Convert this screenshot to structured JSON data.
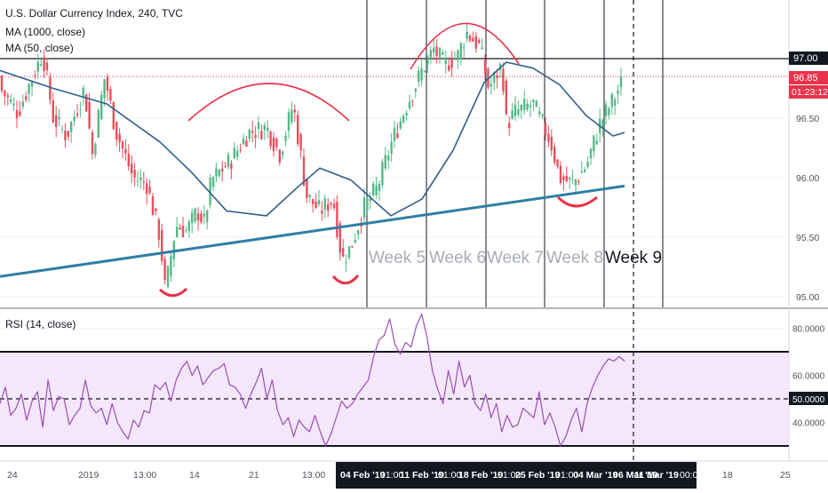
{
  "header": {
    "title": "U.S. Dollar Currency Index, 240, TVC",
    "indicators": [
      "MA (1000, close)",
      "MA (50, close)"
    ]
  },
  "rsi_panel": {
    "label": "RSI (14, close)"
  },
  "price_labels": {
    "level": "97.00",
    "last_price": "96.85",
    "countdown": "01:23:12"
  },
  "colors": {
    "bull_candle": "#53b987",
    "bear_candle": "#eb4d5c",
    "ma1000": "#2f7ea6",
    "ma50": "#2f5f8a",
    "arc": "#e8334a",
    "rsi_line": "#9a4fb0",
    "rsi_band_fill": "#f4e6fb",
    "price_label_bg": "#e8334a"
  },
  "chart_data": [
    {
      "type": "candlestick",
      "title": "U.S. Dollar Currency Index, 240, TVC",
      "series": [
        {
          "name": "MA (1000, close)",
          "start": 95.17,
          "end": 95.93
        },
        {
          "name": "MA (50, close)",
          "points": [
            [
              0,
              96.9
            ],
            [
              60,
              96.75
            ],
            [
              120,
              96.62
            ],
            [
              180,
              96.3
            ],
            [
              215,
              96.05
            ],
            [
              255,
              95.72
            ],
            [
              300,
              95.68
            ],
            [
              335,
              95.92
            ],
            [
              360,
              96.08
            ],
            [
              395,
              95.98
            ],
            [
              440,
              95.68
            ],
            [
              475,
              95.82
            ],
            [
              510,
              96.23
            ],
            [
              545,
              96.8
            ],
            [
              570,
              96.97
            ],
            [
              600,
              96.92
            ],
            [
              630,
              96.78
            ],
            [
              660,
              96.52
            ],
            [
              690,
              96.35
            ],
            [
              703,
              96.38
            ]
          ]
        }
      ],
      "annotations": [
        "Week 5",
        "Week 6",
        "Week 7",
        "Week 8",
        "Week 9"
      ],
      "x_tick_labels": [
        "24",
        "2019",
        "13:00",
        "14",
        "21",
        "13:00",
        "04 Feb '19",
        "01:00",
        "11 Feb '19",
        "01:00",
        "18 Feb '19",
        "01:00",
        "25 Feb '19",
        "01:00",
        "04 Mar '19",
        "06 Mar '19",
        "11 Mar '19",
        "00:00",
        "18",
        "25"
      ],
      "y_tick_labels": [
        "97.00",
        "96.50",
        "96.00",
        "95.50",
        "95.00"
      ],
      "ylim": [
        94.9,
        97.5
      ],
      "horizontal_levels": [
        97.0
      ]
    },
    {
      "type": "line",
      "title": "RSI (14, close)",
      "y_tick_labels": [
        "80.0000",
        "60.0000",
        "50.0000",
        "40.0000"
      ],
      "ylim": [
        25,
        87
      ],
      "band": [
        30,
        70
      ],
      "midline": 50,
      "values": [
        48,
        55,
        43,
        46,
        52,
        41,
        49,
        53,
        38,
        58,
        45,
        51,
        50,
        39,
        43,
        46,
        58,
        47,
        44,
        46,
        39,
        48,
        40,
        36,
        33,
        41,
        38,
        45,
        44,
        56,
        54,
        57,
        49,
        58,
        63,
        66,
        60,
        64,
        56,
        59,
        62,
        63,
        65,
        56,
        55,
        52,
        46,
        52,
        57,
        63,
        50,
        58,
        45,
        39,
        42,
        34,
        41,
        38,
        36,
        43,
        36,
        30,
        35,
        42,
        49,
        46,
        48,
        52,
        55,
        58,
        68,
        75,
        77,
        84,
        73,
        69,
        74,
        72,
        81,
        86,
        76,
        62,
        54,
        48,
        62,
        52,
        66,
        55,
        60,
        48,
        45,
        52,
        42,
        48,
        36,
        43,
        38,
        39,
        46,
        44,
        42,
        53,
        39,
        44,
        38,
        30,
        34,
        41,
        46,
        36,
        48,
        55,
        60,
        64,
        67,
        66,
        68,
        66
      ]
    }
  ]
}
